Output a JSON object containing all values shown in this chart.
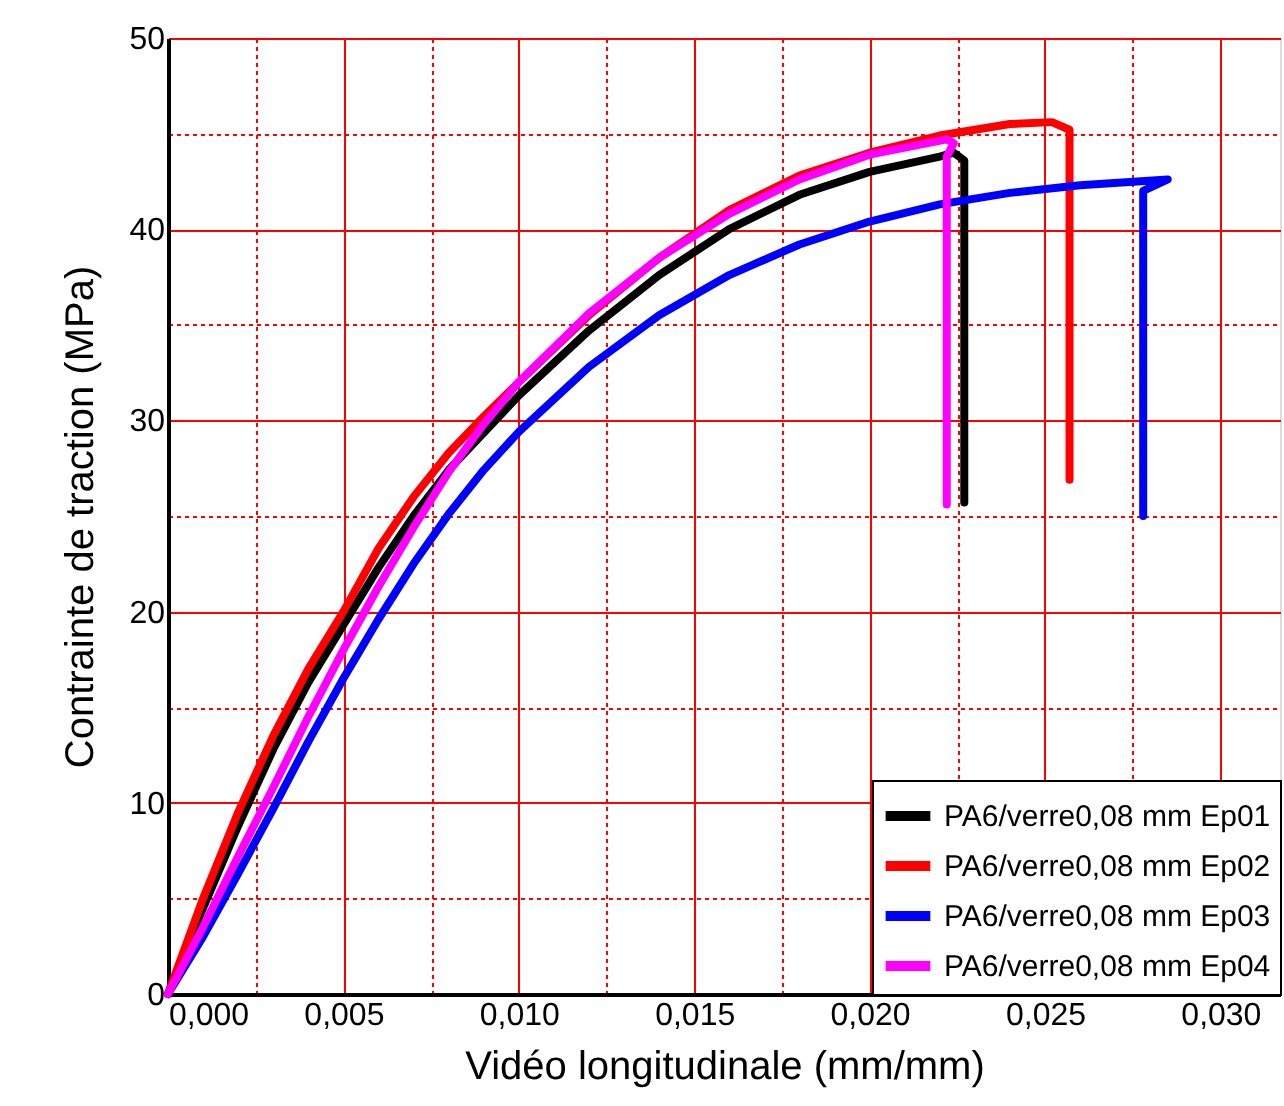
{
  "chart_data": {
    "type": "line",
    "xlabel": "Vidéo longitudinale (mm/mm)",
    "ylabel": "Contrainte de traction (MPa)",
    "xlim": [
      0,
      0.0317
    ],
    "ylim": [
      0,
      50
    ],
    "xticks": [
      {
        "value": 0,
        "label": "0,000"
      },
      {
        "value": 0.0025,
        "label": null
      },
      {
        "value": 0.005,
        "label": "0,005"
      },
      {
        "value": 0.0075,
        "label": null
      },
      {
        "value": 0.01,
        "label": "0,010"
      },
      {
        "value": 0.0125,
        "label": null
      },
      {
        "value": 0.015,
        "label": "0,015"
      },
      {
        "value": 0.0175,
        "label": null
      },
      {
        "value": 0.02,
        "label": "0,020"
      },
      {
        "value": 0.0225,
        "label": null
      },
      {
        "value": 0.025,
        "label": "0,025"
      },
      {
        "value": 0.0275,
        "label": null
      },
      {
        "value": 0.03,
        "label": "0,030"
      }
    ],
    "yticks": [
      0,
      {
        "value": 5,
        "label": null
      },
      10,
      {
        "value": 15,
        "label": null
      },
      20,
      {
        "value": 25,
        "label": null
      },
      30,
      {
        "value": 35,
        "label": null
      },
      40,
      {
        "value": 45,
        "label": null
      },
      50
    ],
    "grid": true,
    "legend": "bottom right",
    "line_style": "solid",
    "marker": "none",
    "series": [
      {
        "name": "PA6/verre0,08 mm Ep01",
        "color": "#000000",
        "x": [
          0,
          0.001,
          0.002,
          0.003,
          0.004,
          0.005,
          0.006,
          0.007,
          0.008,
          0.01,
          0.012,
          0.014,
          0.016,
          0.018,
          0.02,
          0.022,
          0.0224,
          0.0227,
          0.0227
        ],
        "values": [
          0,
          4.5,
          8.8,
          12.8,
          16.3,
          19.3,
          22.3,
          25,
          27.4,
          31.3,
          34.7,
          37.6,
          40,
          41.8,
          43,
          43.8,
          44,
          43.6,
          25.7
        ]
      },
      {
        "name": "PA6/verre0,08 mm Ep02",
        "color": "#ff0000",
        "x": [
          0,
          0.001,
          0.002,
          0.003,
          0.004,
          0.005,
          0.006,
          0.007,
          0.008,
          0.009,
          0.01,
          0.012,
          0.014,
          0.016,
          0.018,
          0.02,
          0.022,
          0.024,
          0.0252,
          0.0257,
          0.0257
        ],
        "values": [
          0,
          5,
          9.5,
          13.5,
          17,
          20,
          23.3,
          26,
          28.3,
          30.2,
          32,
          35.5,
          38.5,
          41,
          42.8,
          44,
          44.9,
          45.5,
          45.6,
          45.2,
          26.9
        ]
      },
      {
        "name": "PA6/verre0,08 mm Ep03",
        "color": "#0000ff",
        "x": [
          0,
          0.001,
          0.002,
          0.003,
          0.004,
          0.005,
          0.006,
          0.007,
          0.008,
          0.009,
          0.01,
          0.012,
          0.014,
          0.016,
          0.018,
          0.02,
          0.022,
          0.024,
          0.026,
          0.0285,
          0.0278,
          0.0278
        ],
        "values": [
          0,
          3,
          6.3,
          9.7,
          13.2,
          16.5,
          19.6,
          22.5,
          25.1,
          27.4,
          29.4,
          32.8,
          35.5,
          37.6,
          39.2,
          40.4,
          41.3,
          41.9,
          42.3,
          42.6,
          42,
          25
        ]
      },
      {
        "name": "PA6/verre0,08 mm Ep04",
        "color": "#ff00ff",
        "x": [
          0,
          0.001,
          0.002,
          0.003,
          0.004,
          0.005,
          0.006,
          0.007,
          0.008,
          0.009,
          0.01,
          0.012,
          0.014,
          0.016,
          0.018,
          0.02,
          0.0222,
          0.0224,
          0.0222,
          0.0222
        ],
        "values": [
          0,
          3.5,
          7.2,
          10.8,
          14.5,
          18,
          21.3,
          24.4,
          27.3,
          29.8,
          32,
          35.6,
          38.5,
          40.8,
          42.6,
          43.9,
          44.7,
          44.5,
          43.8,
          25.6
        ]
      }
    ]
  }
}
